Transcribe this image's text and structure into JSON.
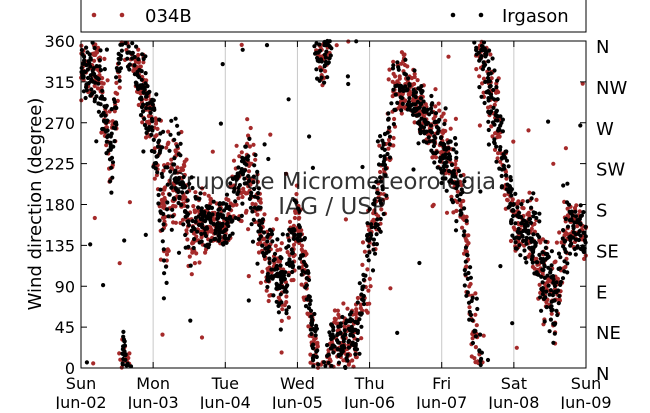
{
  "chart_data": {
    "type": "scatter",
    "title": "",
    "ylabel": "Wind direction (degree)",
    "ylim": [
      0,
      360
    ],
    "yticks": [
      0,
      45,
      90,
      135,
      180,
      225,
      270,
      315,
      360
    ],
    "y2_labels": [
      {
        "value": 360,
        "label": "N"
      },
      {
        "value": 315,
        "label": "NW"
      },
      {
        "value": 270,
        "label": "W"
      },
      {
        "value": 225,
        "label": "SW"
      },
      {
        "value": 180,
        "label": "S"
      },
      {
        "value": 135,
        "label": "SE"
      },
      {
        "value": 90,
        "label": "E"
      },
      {
        "value": 45,
        "label": "NE"
      },
      {
        "value": 0,
        "label": "N"
      }
    ],
    "xlim": [
      "2013-06-02",
      "2013-06-09"
    ],
    "x_ticks": [
      {
        "date": "2013-06-02",
        "day": "Sun",
        "date_label": "Jun-02"
      },
      {
        "date": "2013-06-03",
        "day": "Mon",
        "date_label": "Jun-03"
      },
      {
        "date": "2013-06-04",
        "day": "Tue",
        "date_label": "Jun-04"
      },
      {
        "date": "2013-06-05",
        "day": "Wed",
        "date_label": "Jun-05"
      },
      {
        "date": "2013-06-06",
        "day": "Thu",
        "date_label": "Jun-06"
      },
      {
        "date": "2013-06-07",
        "day": "Fri",
        "date_label": "Jun-07"
      },
      {
        "date": "2013-06-08",
        "day": "Sat",
        "date_label": "Jun-08"
      },
      {
        "date": "2013-06-09",
        "day": "Sun",
        "date_label": "Jun-09"
      }
    ],
    "grid": "vertical",
    "legend": {
      "placement": "top",
      "columns": 2
    },
    "watermark": [
      "Grupo de Micrometeorologia",
      "IAG / USP"
    ],
    "series": [
      {
        "name": "034B",
        "color": "#a52a2a",
        "marker": "circle"
      },
      {
        "name": "Irgason",
        "color": "#000000",
        "marker": "circle"
      }
    ],
    "trend": [
      {
        "t": "2013-06-02T00:00",
        "y": 330,
        "spread": 20
      },
      {
        "t": "2013-06-02T06:00",
        "y": 320,
        "spread": 30
      },
      {
        "t": "2013-06-02T10:00",
        "y": 230,
        "spread": 40
      },
      {
        "t": "2013-06-02T14:00",
        "y": 20,
        "spread": 20
      },
      {
        "t": "2013-06-02T18:00",
        "y": 335,
        "spread": 20
      },
      {
        "t": "2013-06-03T00:00",
        "y": 270,
        "spread": 40
      },
      {
        "t": "2013-06-03T04:00",
        "y": 160,
        "spread": 60
      },
      {
        "t": "2013-06-03T08:00",
        "y": 225,
        "spread": 40
      },
      {
        "t": "2013-06-03T12:00",
        "y": 160,
        "spread": 40
      },
      {
        "t": "2013-06-03T18:00",
        "y": 160,
        "spread": 20
      },
      {
        "t": "2013-06-04T00:00",
        "y": 155,
        "spread": 20
      },
      {
        "t": "2013-06-04T04:00",
        "y": 200,
        "spread": 30
      },
      {
        "t": "2013-06-04T08:00",
        "y": 215,
        "spread": 40
      },
      {
        "t": "2013-06-04T14:00",
        "y": 120,
        "spread": 30
      },
      {
        "t": "2013-06-04T20:00",
        "y": 90,
        "spread": 40
      },
      {
        "t": "2013-06-05T00:00",
        "y": 165,
        "spread": 30
      },
      {
        "t": "2013-06-05T04:00",
        "y": 60,
        "spread": 30
      },
      {
        "t": "2013-06-05T08:00",
        "y": 330,
        "spread": 30
      },
      {
        "t": "2013-06-05T12:00",
        "y": 30,
        "spread": 25
      },
      {
        "t": "2013-06-05T20:00",
        "y": 35,
        "spread": 30
      },
      {
        "t": "2013-06-06T00:00",
        "y": 130,
        "spread": 40
      },
      {
        "t": "2013-06-06T06:00",
        "y": 250,
        "spread": 40
      },
      {
        "t": "2013-06-06T10:00",
        "y": 320,
        "spread": 30
      },
      {
        "t": "2013-06-06T14:00",
        "y": 300,
        "spread": 20
      },
      {
        "t": "2013-06-06T20:00",
        "y": 270,
        "spread": 30
      },
      {
        "t": "2013-06-07T00:00",
        "y": 240,
        "spread": 30
      },
      {
        "t": "2013-06-07T06:00",
        "y": 200,
        "spread": 40
      },
      {
        "t": "2013-06-07T10:00",
        "y": 60,
        "spread": 40
      },
      {
        "t": "2013-06-07T14:00",
        "y": 330,
        "spread": 30
      },
      {
        "t": "2013-06-07T18:00",
        "y": 280,
        "spread": 40
      },
      {
        "t": "2013-06-08T00:00",
        "y": 160,
        "spread": 20
      },
      {
        "t": "2013-06-08T06:00",
        "y": 150,
        "spread": 30
      },
      {
        "t": "2013-06-08T10:00",
        "y": 100,
        "spread": 40
      },
      {
        "t": "2013-06-08T14:00",
        "y": 80,
        "spread": 40
      },
      {
        "t": "2013-06-08T18:00",
        "y": 160,
        "spread": 30
      },
      {
        "t": "2013-06-09T00:00",
        "y": 145,
        "spread": 15
      }
    ]
  }
}
